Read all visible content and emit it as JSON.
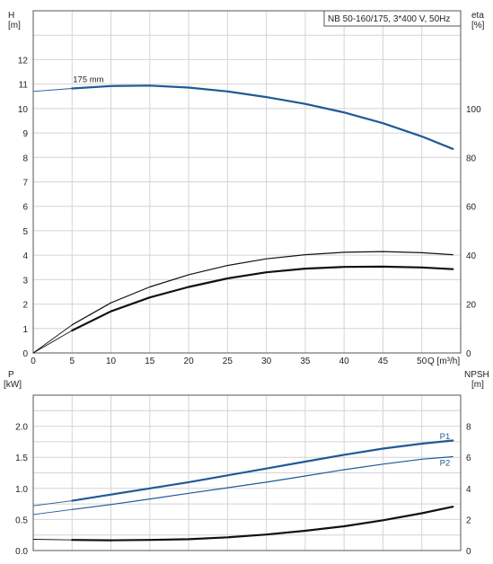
{
  "colors": {
    "blue": "#1f5a96",
    "black": "#111111",
    "grid": "#d4d4d4"
  },
  "chart_data": [
    {
      "type": "line",
      "title": "NB 50-160/175, 3*400 V, 50Hz",
      "xlabel": "Q [m³/h]",
      "ylabel_left": [
        "H",
        "[m]"
      ],
      "ylabel_right": [
        "eta",
        "[%]"
      ],
      "xlim": [
        0,
        55
      ],
      "ylim_left": [
        0,
        14
      ],
      "ylim_right": [
        0,
        140
      ],
      "x_ticks": [
        0,
        5,
        10,
        15,
        20,
        25,
        30,
        35,
        40,
        45,
        50
      ],
      "y_ticks_left": [
        0,
        1,
        2,
        3,
        4,
        5,
        6,
        7,
        8,
        9,
        10,
        11,
        12
      ],
      "y_ticks_right": [
        0,
        20,
        40,
        60,
        80,
        100
      ],
      "annotations": [
        {
          "text": "175 mm",
          "x": 6.5,
          "y": 11.0
        }
      ],
      "series": [
        {
          "name": "175 mm",
          "axis": "left",
          "color": "#1f5a96",
          "width": 2.2,
          "x": [
            5,
            10,
            15,
            20,
            25,
            30,
            35,
            40,
            45,
            50,
            54
          ],
          "y": [
            10.82,
            10.92,
            10.94,
            10.86,
            10.7,
            10.47,
            10.19,
            9.84,
            9.4,
            8.86,
            8.35
          ]
        },
        {
          "axis": "left",
          "color": "#1f5a96",
          "width": 1,
          "dashed": true,
          "x": [
            0,
            5
          ],
          "y": [
            10.7,
            10.82
          ]
        },
        {
          "axis": "right",
          "color": "#111111",
          "width": 1.2,
          "x": [
            5,
            10,
            15,
            20,
            25,
            30,
            35,
            40,
            45,
            50,
            54
          ],
          "y": [
            11.5,
            20.5,
            27.0,
            32.0,
            35.8,
            38.5,
            40.2,
            41.2,
            41.5,
            41.0,
            40.2
          ]
        },
        {
          "axis": "right",
          "color": "#111111",
          "width": 1,
          "dashed": true,
          "x": [
            0,
            5
          ],
          "y": [
            0,
            11.5
          ]
        },
        {
          "axis": "right",
          "color": "#111111",
          "width": 2.2,
          "x": [
            5,
            10,
            15,
            20,
            25,
            30,
            35,
            40,
            45,
            50,
            54
          ],
          "y": [
            9.2,
            17.0,
            22.7,
            27.0,
            30.5,
            33.0,
            34.5,
            35.2,
            35.3,
            35.0,
            34.3
          ]
        },
        {
          "axis": "right",
          "color": "#111111",
          "width": 1,
          "dashed": true,
          "x": [
            0,
            5
          ],
          "y": [
            0,
            9.2
          ]
        }
      ]
    },
    {
      "type": "line",
      "ylabel_left": [
        "P",
        "[kW]"
      ],
      "ylabel_right": [
        "NPSH",
        "[m]"
      ],
      "xlim": [
        0,
        55
      ],
      "ylim_left": [
        0,
        2.5
      ],
      "ylim_right": [
        0,
        10
      ],
      "y_ticks_left": [
        0.0,
        0.5,
        1.0,
        1.5,
        2.0
      ],
      "y_ticks_left_labels": [
        "0.0",
        "0.5",
        "1.0",
        "1.5",
        "2.0"
      ],
      "y_ticks_right": [
        0,
        2,
        4,
        6,
        8
      ],
      "series": [
        {
          "name": "P1",
          "axis": "left",
          "color": "#1f5a96",
          "width": 2.2,
          "x": [
            5,
            10,
            15,
            20,
            25,
            30,
            35,
            40,
            45,
            50,
            54
          ],
          "y": [
            0.8,
            0.9,
            1.0,
            1.1,
            1.21,
            1.32,
            1.43,
            1.54,
            1.64,
            1.72,
            1.77
          ]
        },
        {
          "axis": "left",
          "color": "#1f5a96",
          "width": 1,
          "dashed": true,
          "x": [
            0,
            5
          ],
          "y": [
            0.72,
            0.8
          ]
        },
        {
          "name": "P2",
          "axis": "left",
          "color": "#1f5a96",
          "width": 1.2,
          "x": [
            5,
            10,
            15,
            20,
            25,
            30,
            35,
            40,
            45,
            50,
            54
          ],
          "y": [
            0.66,
            0.74,
            0.83,
            0.92,
            1.01,
            1.1,
            1.2,
            1.3,
            1.39,
            1.47,
            1.51
          ]
        },
        {
          "axis": "left",
          "color": "#1f5a96",
          "width": 1,
          "dashed": true,
          "x": [
            0,
            5
          ],
          "y": [
            0.58,
            0.66
          ]
        },
        {
          "axis": "right",
          "color": "#111111",
          "width": 2.2,
          "x": [
            5,
            10,
            15,
            20,
            25,
            30,
            35,
            40,
            45,
            50,
            54
          ],
          "y": [
            0.68,
            0.66,
            0.68,
            0.73,
            0.85,
            1.03,
            1.27,
            1.56,
            1.95,
            2.4,
            2.82
          ]
        },
        {
          "axis": "right",
          "color": "#111111",
          "width": 1,
          "dashed": true,
          "x": [
            0,
            5
          ],
          "y": [
            0.72,
            0.68
          ]
        }
      ],
      "labels": [
        {
          "text": "P1",
          "x": 52.3,
          "y": 1.85
        },
        {
          "text": "P2",
          "x": 52.3,
          "y": 1.42
        }
      ]
    }
  ]
}
